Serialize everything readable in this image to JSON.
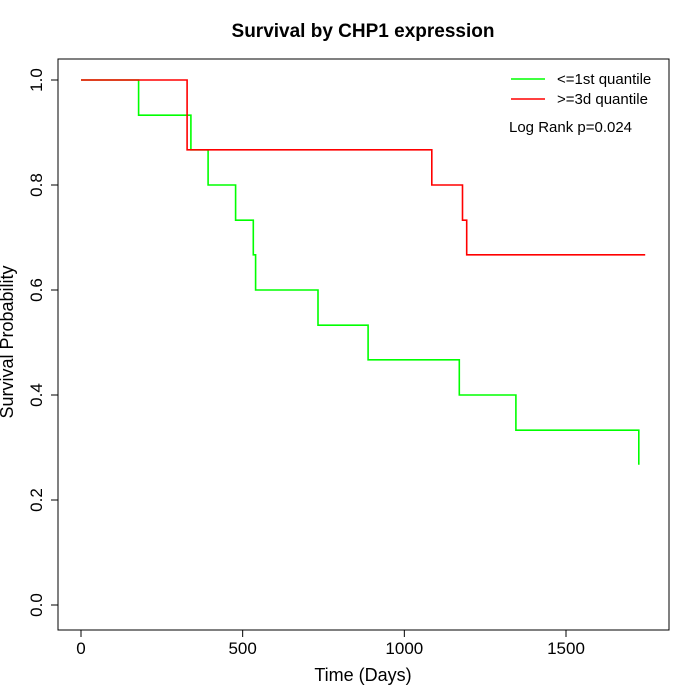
{
  "chart_data": {
    "type": "line",
    "title": "Survival by CHP1 expression",
    "xlabel": "Time (Days)",
    "ylabel": "Survival Probability",
    "xlim": [
      0,
      1750
    ],
    "ylim": [
      0,
      1
    ],
    "xticks": [
      0,
      500,
      1000,
      1500
    ],
    "xtick_labels": [
      "0",
      "500",
      "1000",
      "1500"
    ],
    "yticks": [
      0,
      0.2,
      0.4,
      0.6,
      0.8,
      1.0
    ],
    "ytick_labels": [
      "0.0",
      "0.2",
      "0.4",
      "0.6",
      "0.8",
      "1.0"
    ],
    "grid": false,
    "legend_position": "top-right",
    "annotation": "Log Rank p=0.024",
    "series": [
      {
        "name": "<=1st quantile",
        "color": "#00ff00",
        "step": true,
        "x": [
          0,
          178,
          340,
          393,
          478,
          533,
          540,
          733,
          888,
          1170,
          1345,
          1725
        ],
        "y": [
          1.0,
          0.933,
          0.867,
          0.8,
          0.733,
          0.667,
          0.6,
          0.533,
          0.467,
          0.4,
          0.333,
          0.267
        ]
      },
      {
        "name": ">=3d quantile",
        "color": "#ff0000",
        "step": true,
        "x": [
          0,
          328,
          1085,
          1180,
          1193,
          1745
        ],
        "y": [
          1.0,
          0.867,
          0.8,
          0.733,
          0.667,
          0.667
        ]
      }
    ]
  }
}
